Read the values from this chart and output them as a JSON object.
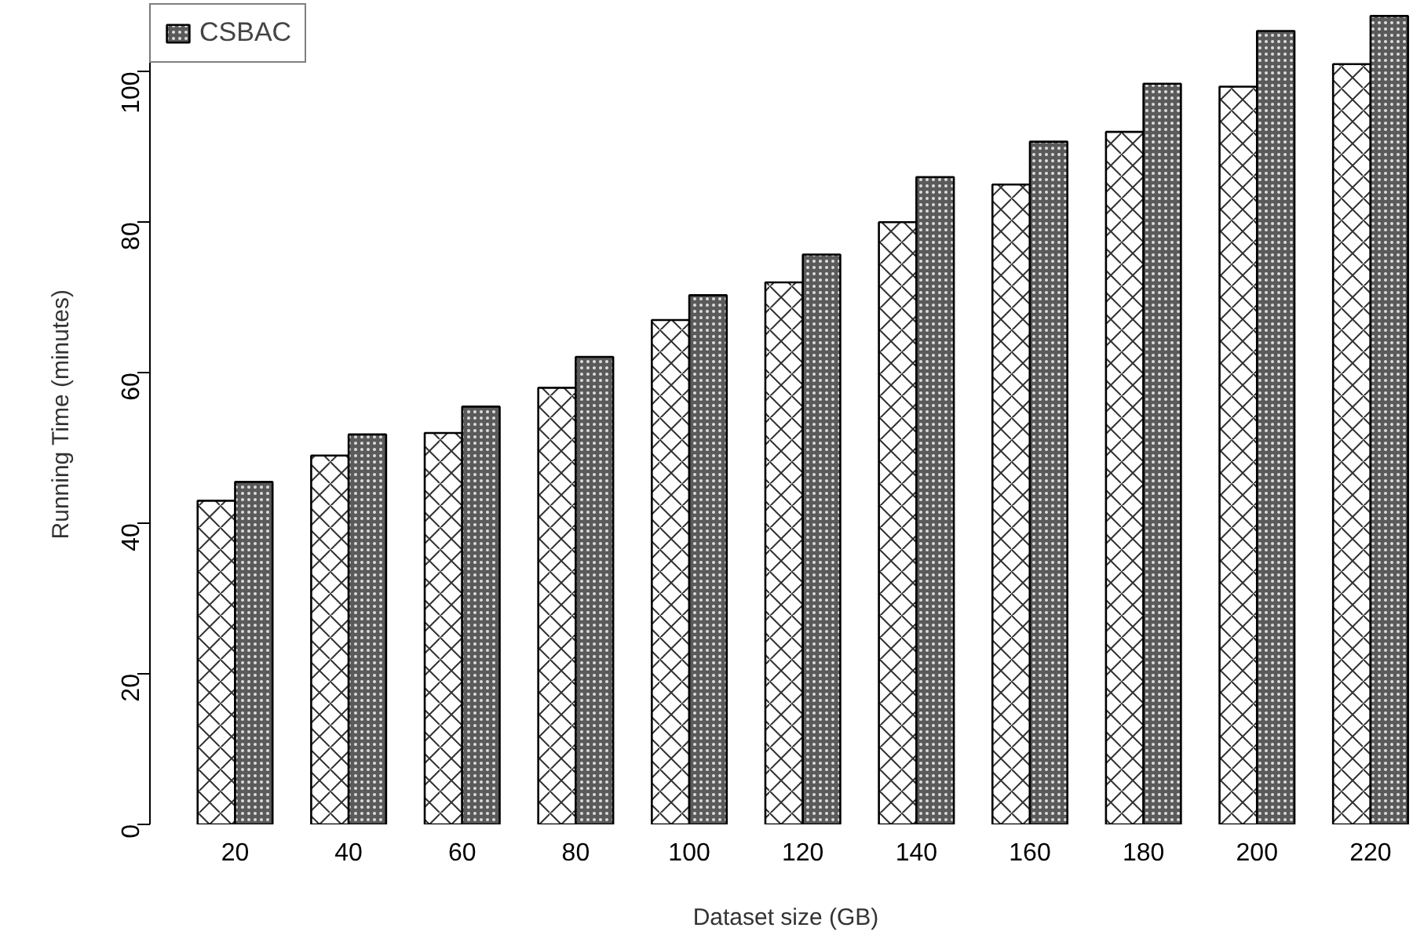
{
  "chart_data": {
    "type": "bar",
    "xlabel": "Dataset size (GB)",
    "ylabel": "Running Time (minutes)",
    "categories": [
      "20",
      "40",
      "60",
      "80",
      "100",
      "120",
      "140",
      "160",
      "180",
      "200",
      "220"
    ],
    "series": [
      {
        "color": "#ffffff",
        "values": [
          43,
          49,
          52,
          58,
          67,
          72,
          80,
          85,
          92,
          98,
          101
        ]
      },
      {
        "name": "CSBAC",
        "color": "#5a5a5a",
        "values": [
          45.5,
          51.8,
          55.5,
          62.1,
          70.3,
          75.7,
          86,
          90.7,
          98.4,
          105.4,
          107.4
        ]
      }
    ],
    "ylim": [
      0,
      109
    ],
    "yticks": [
      0,
      20,
      40,
      60,
      80,
      100
    ],
    "grid": false,
    "legend": "top left"
  }
}
